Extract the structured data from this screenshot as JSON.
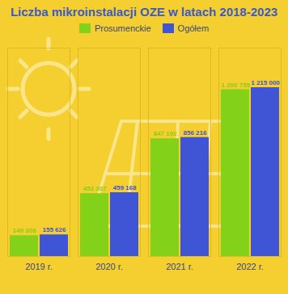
{
  "chart_data": {
    "type": "bar",
    "title": "Liczba mikroinstalacji OZE w latach 2018-2023",
    "categories": [
      "2019 r.",
      "2020 r.",
      "2021 r.",
      "2022 r."
    ],
    "series": [
      {
        "name": "Prosumenckie",
        "color": "#84d119",
        "values": [
          149308,
          452307,
          847192,
          1200755
        ],
        "value_labels": [
          "149 308",
          "452 307",
          "847 192",
          "1 200 755"
        ]
      },
      {
        "name": "Ogółem",
        "color": "#3f55d6",
        "values": [
          155626,
          459168,
          856216,
          1215000
        ],
        "value_labels": [
          "155 626",
          "459 168",
          "856 216",
          "1 215 000"
        ]
      }
    ],
    "ylim": [
      0,
      1500000
    ],
    "yticks": [
      0
    ],
    "grid": false,
    "legend": "top",
    "data_labels": true,
    "tick_labels": "x"
  }
}
